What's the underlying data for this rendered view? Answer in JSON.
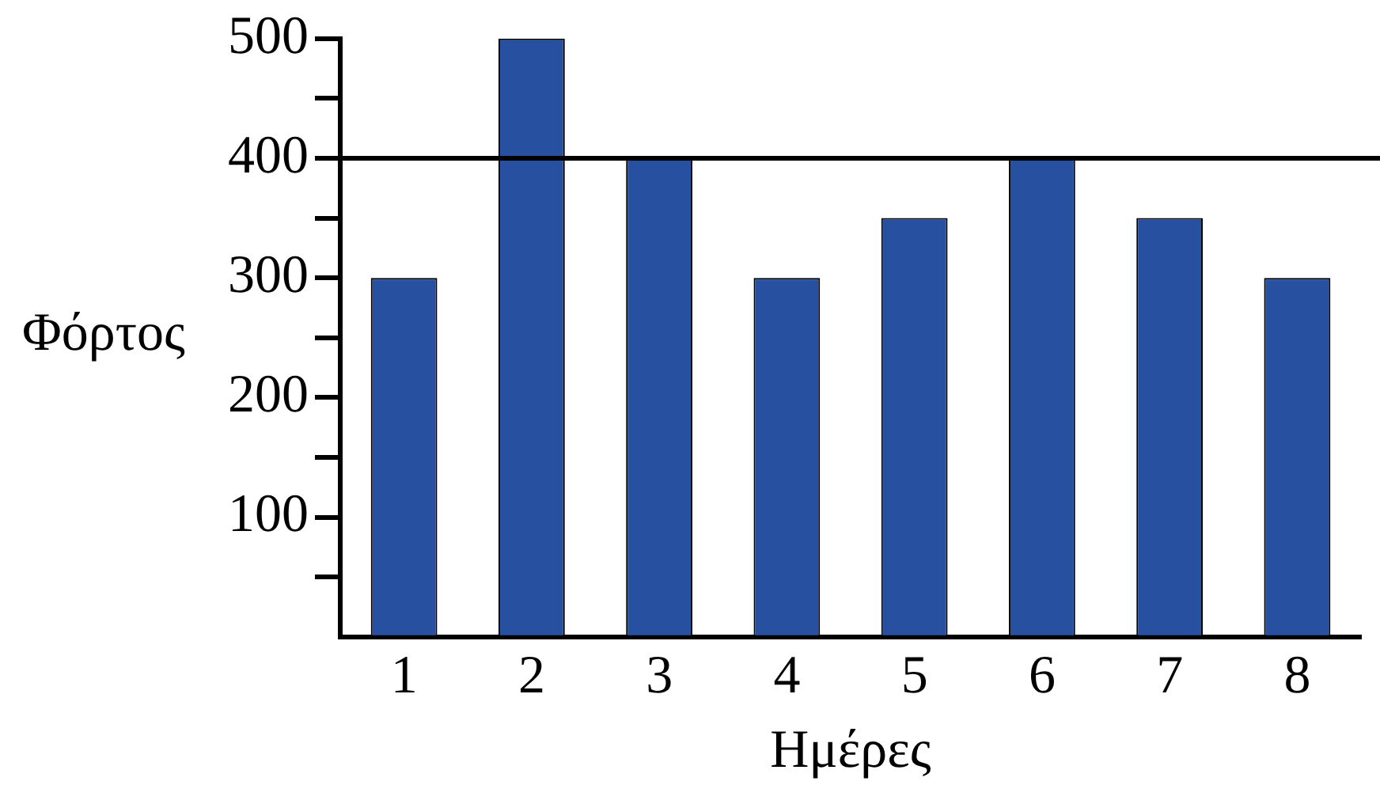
{
  "chart_data": {
    "type": "bar",
    "xlabel": "Ημέρες",
    "ylabel": "Φόρτος",
    "categories": [
      "1",
      "2",
      "3",
      "4",
      "5",
      "6",
      "7",
      "8"
    ],
    "values": [
      300,
      500,
      400,
      300,
      350,
      400,
      350,
      300
    ],
    "color": "#2850a0",
    "ylim": [
      0,
      500
    ],
    "yticks": [
      {
        "value": 50,
        "label": null
      },
      100,
      {
        "value": 150,
        "label": null
      },
      200,
      {
        "value": 250,
        "label": null
      },
      300,
      {
        "value": 350,
        "label": null
      },
      400,
      {
        "value": 450,
        "label": null
      },
      500
    ],
    "grid": false,
    "legend": false,
    "ref_lines": [
      {
        "axis": "y",
        "value": 400,
        "color": "#000000"
      }
    ]
  }
}
